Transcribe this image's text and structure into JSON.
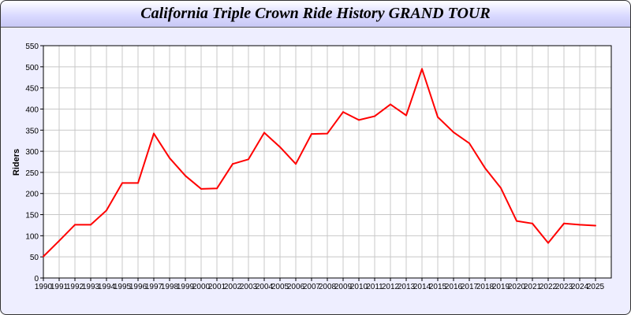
{
  "chart_data": {
    "type": "line",
    "title": "California Triple Crown Ride History GRAND TOUR",
    "xlabel": "",
    "ylabel": "Riders",
    "ylim": [
      0,
      550
    ],
    "yticks": [
      0,
      50,
      100,
      150,
      200,
      250,
      300,
      350,
      400,
      450,
      500,
      550
    ],
    "grid": true,
    "line_color": "#ff0000",
    "x": [
      1990,
      1991,
      1992,
      1993,
      1994,
      1995,
      1996,
      1997,
      1998,
      1999,
      2000,
      2001,
      2002,
      2003,
      2004,
      2005,
      2006,
      2007,
      2008,
      2009,
      2010,
      2011,
      2012,
      2013,
      2014,
      2015,
      2016,
      2017,
      2018,
      2019,
      2020,
      2021,
      2022,
      2023,
      2024,
      2025
    ],
    "series": [
      {
        "values": [
          51,
          88,
          126,
          126,
          160,
          225,
          225,
          342,
          284,
          242,
          211,
          212,
          270,
          281,
          344,
          310,
          270,
          341,
          342,
          393,
          374,
          383,
          411,
          385,
          495,
          381,
          345,
          319,
          260,
          213,
          135,
          129,
          83,
          129,
          126,
          124
        ]
      }
    ]
  }
}
